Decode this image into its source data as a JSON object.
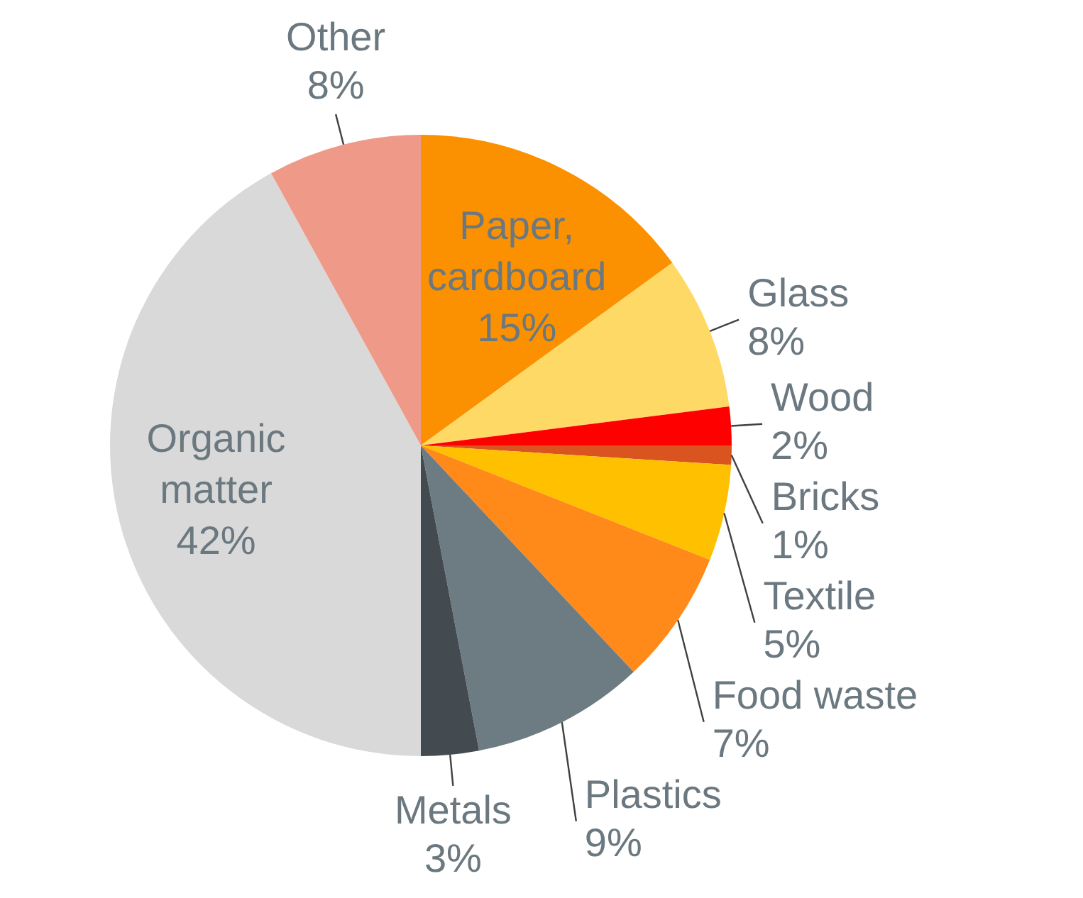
{
  "chart_data": {
    "type": "pie",
    "categories": [
      "Paper, cardboard",
      "Glass",
      "Wood",
      "Bricks",
      "Textile",
      "Food waste",
      "Plastics",
      "Metals",
      "Organic matter",
      "Other"
    ],
    "values": [
      15,
      8,
      2,
      1,
      5,
      7,
      9,
      3,
      42,
      8
    ],
    "value_labels": [
      "15%",
      "8%",
      "2%",
      "1%",
      "5%",
      "7%",
      "9%",
      "3%",
      "42%",
      "8%"
    ],
    "colors": [
      "#fb9100",
      "#ffd966",
      "#ff0000",
      "#d9541e",
      "#ffc000",
      "#ff8a1a",
      "#6d7b82",
      "#434b51",
      "#d9d9d9",
      "#ef9a88"
    ],
    "legend": false
  }
}
